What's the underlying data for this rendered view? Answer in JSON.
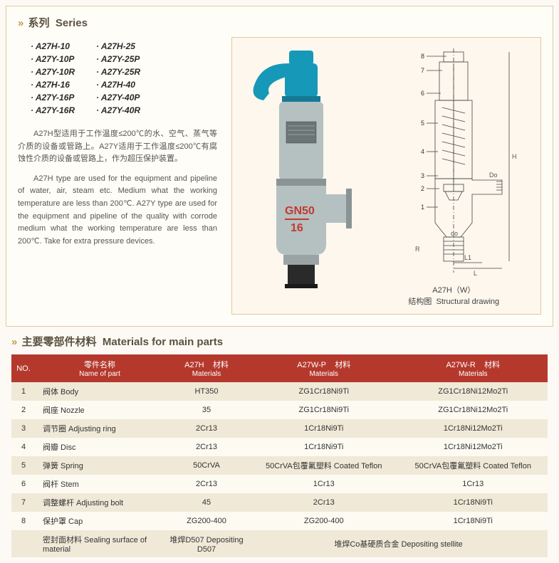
{
  "series": {
    "header_cn": "系列",
    "header_en": "Series",
    "col1": [
      "A27H-10",
      "A27Y-10P",
      "A27Y-10R",
      "A27H-16",
      "A27Y-16P",
      "A27Y-16R"
    ],
    "col2": [
      "A27H-25",
      "A27Y-25P",
      "A27Y-25R",
      "A27H-40",
      "A27Y-40P",
      "A27Y-40R"
    ],
    "desc_cn": "A27H型适用于工作温度≤200℃的水、空气、蒸气等介质的设备或管路上。A27Y适用于工作温度≤200℃有腐蚀性介质的设备或管路上，作为超压保护装置。",
    "desc_en": "A27H type are used for the equipment and pipeline of water, air, steam etc. Medium what the working temperature are less than 200℃. A27Y type are used for the equipment and pipeline of the quality with corrode medium what the working temperature are less than 200℃. Take for extra pressure devices.",
    "valve_marking_top": "GN50",
    "valve_marking_bot": "16",
    "caption_model": "A27H（W）",
    "caption_sub_cn": "结构图",
    "caption_sub_en": "Structural drawing",
    "callouts": [
      "8",
      "7",
      "6",
      "5",
      "4",
      "3",
      "2",
      "1"
    ],
    "dims": {
      "do": "do",
      "L": "L",
      "L1": "L1",
      "Do": "Do",
      "H": "H",
      "R": "R"
    }
  },
  "materials": {
    "header_cn": "主要零部件材料",
    "header_en": "Materials for main parts",
    "columns": {
      "no": "NO.",
      "name_cn": "零件名称",
      "name_en": "Name of part",
      "c1": "A27H",
      "mat_cn": "材料",
      "mat_en": "Materials",
      "c2": "A27W-P",
      "c3": "A27W-R"
    },
    "rows": [
      {
        "no": "1",
        "name": "阀体  Body",
        "m1": "HT350",
        "m2": "ZG1Cr18Ni9Ti",
        "m3": "ZG1Cr18Ni12Mo2Ti"
      },
      {
        "no": "2",
        "name": "阀座  Nozzle",
        "m1": "35",
        "m2": "ZG1Cr18Ni9Ti",
        "m3": "ZG1Cr18Ni12Mo2Ti"
      },
      {
        "no": "3",
        "name": "调节圈  Adjusting ring",
        "m1": "2Cr13",
        "m2": "1Cr18Ni9Ti",
        "m3": "1Cr18Ni12Mo2Ti"
      },
      {
        "no": "4",
        "name": "阀瓣  Disc",
        "m1": "2Cr13",
        "m2": "1Cr18Ni9Ti",
        "m3": "1Cr18Ni12Mo2Ti"
      },
      {
        "no": "5",
        "name": "弹簧  Spring",
        "m1": "50CrVA",
        "m2": "50CrVA包覆氟塑料  Coated Teflon",
        "m3": "50CrVA包覆氟塑料  Coated Teflon"
      },
      {
        "no": "6",
        "name": "阀杆  Stem",
        "m1": "2Cr13",
        "m2": "1Cr13",
        "m3": "1Cr13"
      },
      {
        "no": "7",
        "name": "调整螺杆  Adjusting bolt",
        "m1": "45",
        "m2": "2Cr13",
        "m3": "1Cr18Ni9Ti"
      },
      {
        "no": "8",
        "name": "保护罩  Cap",
        "m1": "ZG200-400",
        "m2": "ZG200-400",
        "m3": "1Cr18Ni9Ti"
      },
      {
        "no": "",
        "name": "密封面材料  Sealing surface of material",
        "m1": "堆焊D507  Depositing D507",
        "m2": "堆焊Co基硬质合金  Depositing stellite",
        "m3": ""
      }
    ]
  },
  "colors": {
    "accent_border": "#e0c9a0",
    "header_red": "#b4392c",
    "row_odd": "#f0e9d8",
    "row_even": "#fdfaf2",
    "valve_body": "#9aa8aa",
    "valve_cap": "#1698b9",
    "valve_red": "#c23a2e"
  }
}
